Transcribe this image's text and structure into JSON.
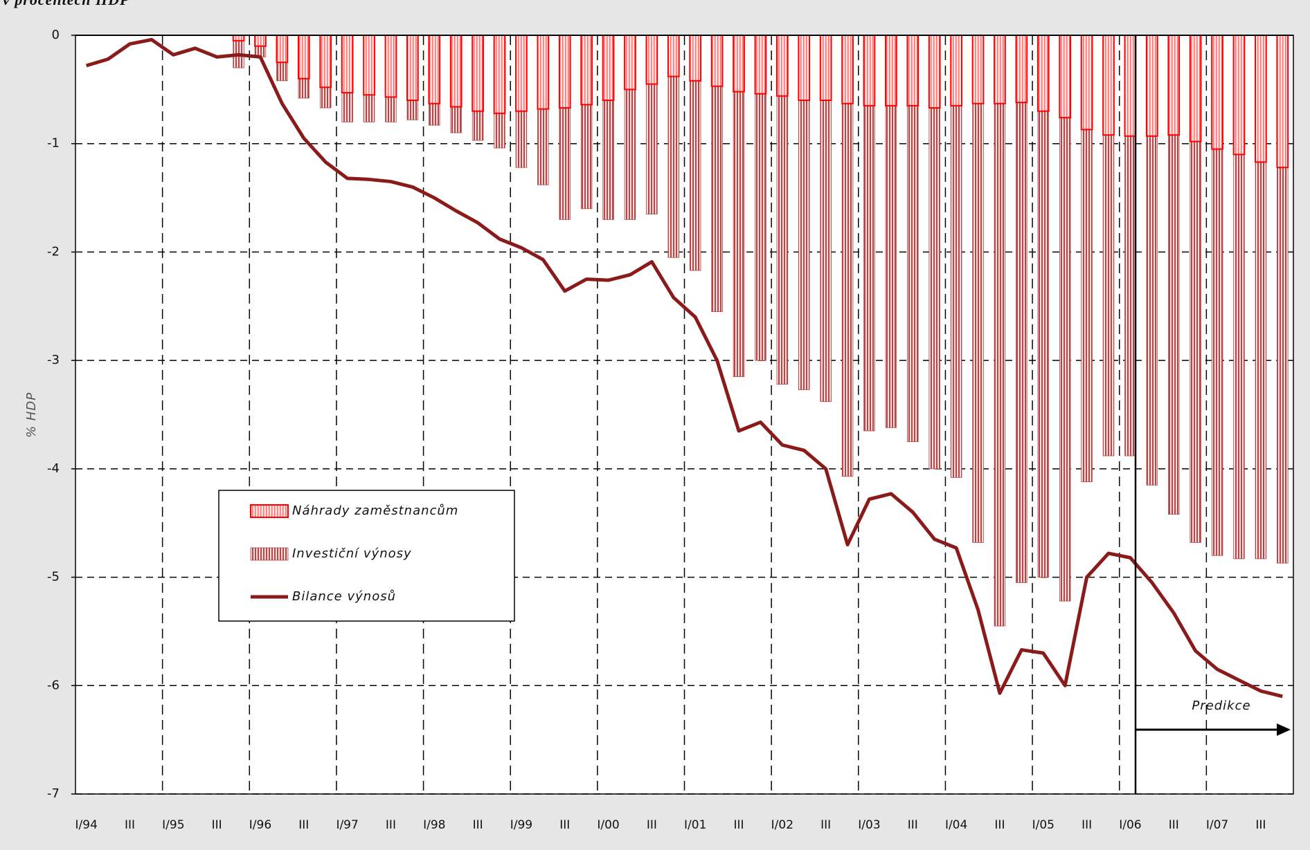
{
  "chart_data": {
    "type": "bar_line",
    "title": "v procentech HDP",
    "y_label": "% HDP",
    "annotation": "Predikce",
    "categories": [
      "I/94",
      null,
      "III",
      null,
      "I/95",
      null,
      "III",
      null,
      "I/96",
      null,
      "III",
      null,
      "I/97",
      null,
      "III",
      null,
      "I/98",
      null,
      "III",
      null,
      "I/99",
      null,
      "III",
      null,
      "I/00",
      null,
      "III",
      null,
      "I/01",
      null,
      "III",
      null,
      "I/02",
      null,
      "III",
      null,
      "I/03",
      null,
      "III",
      null,
      "I/04",
      null,
      "III",
      null,
      "I/05",
      null,
      "III",
      null,
      "I/06",
      null,
      "III",
      null,
      "I/07",
      null,
      "III",
      null
    ],
    "series": [
      {
        "name": "Náhrady zaměstnancům",
        "kind": "bar",
        "color": "#ff0000",
        "values": [
          null,
          null,
          null,
          null,
          null,
          null,
          null,
          -0.05,
          -0.1,
          -0.25,
          -0.4,
          -0.48,
          -0.53,
          -0.55,
          -0.57,
          -0.6,
          -0.63,
          -0.66,
          -0.7,
          -0.72,
          -0.7,
          -0.68,
          -0.67,
          -0.64,
          -0.6,
          -0.5,
          -0.45,
          -0.38,
          -0.42,
          -0.47,
          -0.52,
          -0.54,
          -0.56,
          -0.6,
          -0.6,
          -0.63,
          -0.65,
          -0.65,
          -0.65,
          -0.67,
          -0.65,
          -0.63,
          -0.63,
          -0.62,
          -0.7,
          -0.76,
          -0.87,
          -0.92,
          -0.93,
          -0.93,
          -0.92,
          -0.98,
          -1.05,
          -1.1,
          -1.17,
          -1.22
        ]
      },
      {
        "name": "Investiční výnosy",
        "kind": "bar",
        "color": "#b04848",
        "values": [
          null,
          null,
          null,
          null,
          null,
          null,
          null,
          -0.3,
          -0.2,
          -0.42,
          -0.58,
          -0.67,
          -0.8,
          -0.8,
          -0.8,
          -0.78,
          -0.83,
          -0.9,
          -0.97,
          -1.04,
          -1.22,
          -1.38,
          -1.7,
          -1.6,
          -1.7,
          -1.7,
          -1.65,
          -2.05,
          -2.17,
          -2.55,
          -3.15,
          -3.0,
          -3.22,
          -3.27,
          -3.38,
          -4.07,
          -3.65,
          -3.62,
          -3.75,
          -4.0,
          -4.08,
          -4.68,
          -5.45,
          -5.05,
          -5.0,
          -5.22,
          -4.12,
          -3.88,
          -3.88,
          -4.15,
          -4.42,
          -4.68,
          -4.8,
          -4.83,
          -4.83,
          -4.87
        ]
      },
      {
        "name": "Bilance výnosů",
        "kind": "line",
        "color": "#8b1a1a",
        "values": [
          -0.28,
          -0.22,
          -0.08,
          -0.04,
          -0.18,
          -0.12,
          -0.2,
          -0.18,
          -0.2,
          -0.63,
          -0.95,
          -1.17,
          -1.32,
          -1.33,
          -1.35,
          -1.4,
          -1.5,
          -1.62,
          -1.73,
          -1.88,
          -1.96,
          -2.07,
          -2.36,
          -2.25,
          -2.26,
          -2.21,
          -2.09,
          -2.42,
          -2.6,
          -3.0,
          -3.65,
          -3.57,
          -3.78,
          -3.83,
          -4.0,
          -4.7,
          -4.28,
          -4.23,
          -4.4,
          -4.65,
          -4.73,
          -5.3,
          -6.07,
          -5.67,
          -5.7,
          -6.0,
          -5.0,
          -4.78,
          -4.82,
          -5.05,
          -5.33,
          -5.68,
          -5.85,
          -5.95,
          -6.05,
          -6.1
        ]
      }
    ],
    "ylim": [
      -7,
      0
    ],
    "yticks": [
      -7,
      -6,
      -5,
      -4,
      -3,
      -2,
      -1,
      0
    ],
    "grid": true,
    "legend": "left"
  }
}
